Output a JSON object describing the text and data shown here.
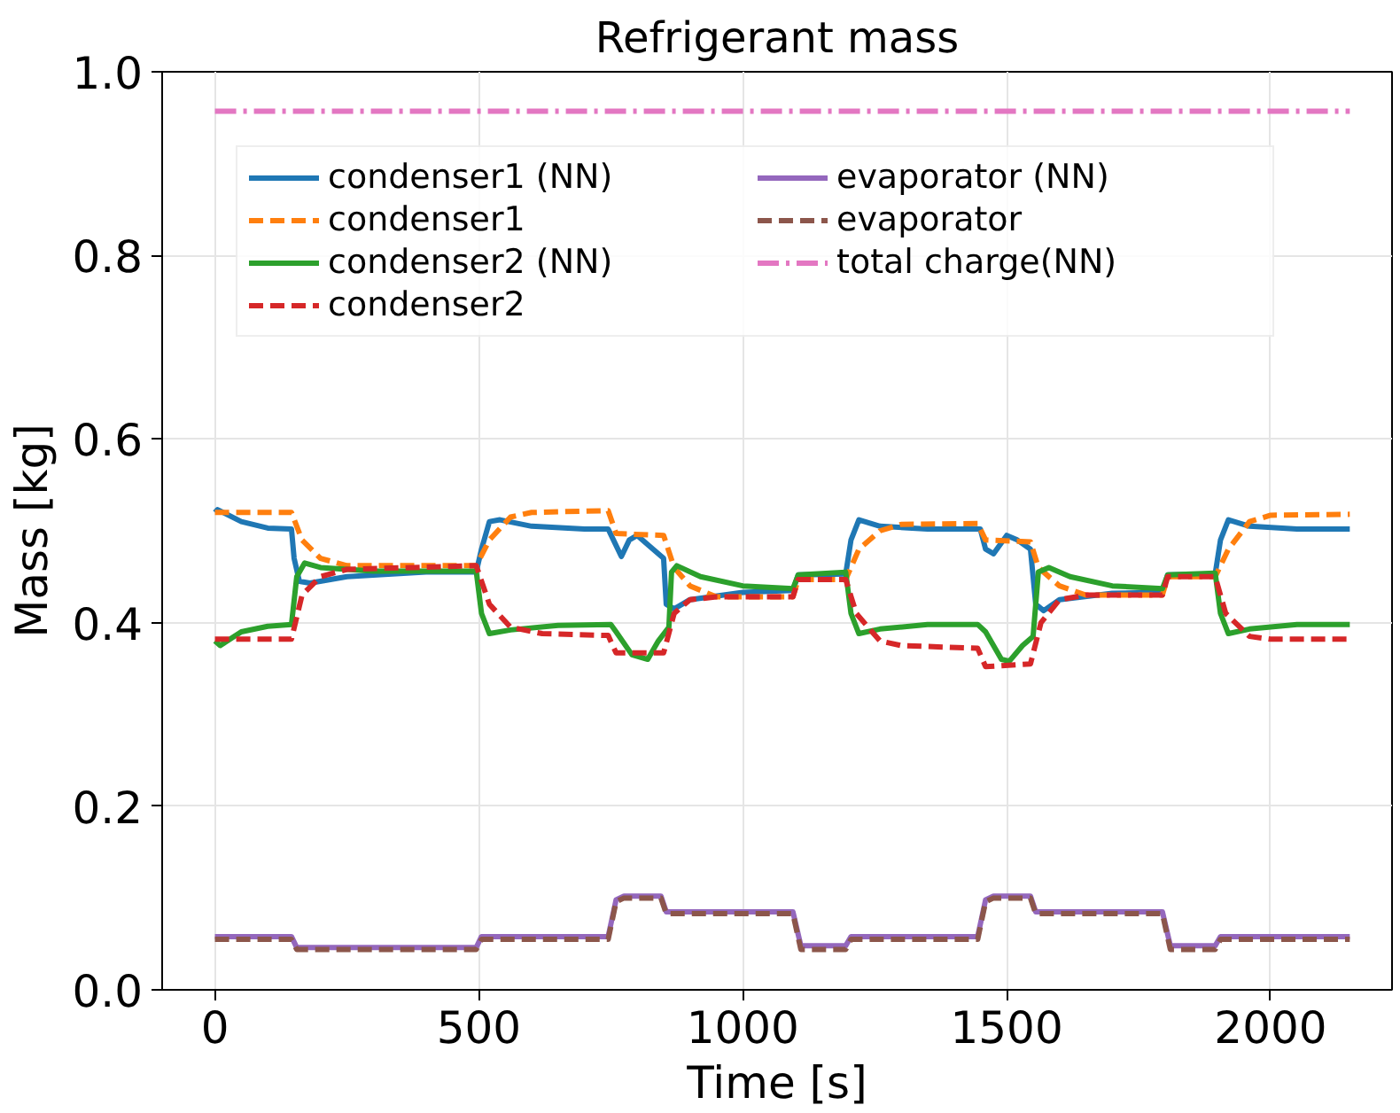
{
  "chart_data": {
    "type": "line",
    "title": "Refrigerant mass",
    "xlabel": "Time [s]",
    "ylabel": "Mass [kg]",
    "xlim": [
      -100,
      2230
    ],
    "ylim": [
      0,
      1.0
    ],
    "xticks": [
      0,
      500,
      1000,
      1500,
      2000
    ],
    "yticks": [
      {
        "value": 0,
        "label": "0.0"
      },
      {
        "value": 0.2,
        "label": "0.2"
      },
      {
        "value": 0.4,
        "label": "0.4"
      },
      {
        "value": 0.6,
        "label": "0.6"
      },
      {
        "value": 0.8,
        "label": "0.8"
      },
      {
        "value": 1,
        "label": "1.0"
      }
    ],
    "grid": true,
    "legend": "top left",
    "series": [
      {
        "name": "condenser1 (NN)",
        "color": "#1f77b4",
        "line_style": "solid",
        "x": [
          0,
          5,
          50,
          100,
          145,
          150,
          160,
          180,
          250,
          400,
          495,
          505,
          520,
          540,
          600,
          700,
          745,
          755,
          770,
          785,
          800,
          830,
          850,
          855,
          870,
          900,
          1000,
          1095,
          1105,
          1195,
          1205,
          1220,
          1260,
          1350,
          1450,
          1460,
          1475,
          1500,
          1520,
          1545,
          1555,
          1570,
          1600,
          1700,
          1795,
          1805,
          1895,
          1905,
          1920,
          1960,
          2050,
          2150
        ],
        "values": [
          0.52,
          0.523,
          0.51,
          0.503,
          0.502,
          0.47,
          0.445,
          0.443,
          0.45,
          0.455,
          0.455,
          0.48,
          0.51,
          0.512,
          0.505,
          0.502,
          0.502,
          0.49,
          0.472,
          0.49,
          0.495,
          0.48,
          0.47,
          0.42,
          0.415,
          0.425,
          0.433,
          0.435,
          0.452,
          0.453,
          0.49,
          0.512,
          0.505,
          0.502,
          0.502,
          0.48,
          0.475,
          0.495,
          0.49,
          0.48,
          0.42,
          0.413,
          0.425,
          0.432,
          0.433,
          0.452,
          0.453,
          0.49,
          0.512,
          0.505,
          0.502,
          0.502
        ]
      },
      {
        "name": "condenser1",
        "color": "#ff7f0e",
        "line_style": "dashed",
        "x": [
          0,
          145,
          165,
          200,
          250,
          495,
          520,
          560,
          600,
          745,
          760,
          850,
          870,
          900,
          950,
          1095,
          1105,
          1195,
          1220,
          1260,
          1300,
          1445,
          1460,
          1545,
          1560,
          1600,
          1650,
          1795,
          1805,
          1895,
          1920,
          1960,
          2000,
          2150
        ],
        "values": [
          0.52,
          0.52,
          0.49,
          0.47,
          0.462,
          0.462,
          0.49,
          0.515,
          0.52,
          0.522,
          0.497,
          0.495,
          0.46,
          0.44,
          0.428,
          0.428,
          0.447,
          0.447,
          0.48,
          0.5,
          0.507,
          0.508,
          0.49,
          0.488,
          0.46,
          0.44,
          0.43,
          0.43,
          0.45,
          0.45,
          0.48,
          0.51,
          0.517,
          0.518
        ]
      },
      {
        "name": "condenser2 (NN)",
        "color": "#2ca02c",
        "line_style": "solid",
        "x": [
          0,
          10,
          50,
          100,
          145,
          155,
          170,
          200,
          300,
          495,
          505,
          520,
          560,
          650,
          750,
          760,
          790,
          820,
          840,
          860,
          865,
          875,
          920,
          1000,
          1095,
          1105,
          1195,
          1205,
          1220,
          1260,
          1350,
          1445,
          1460,
          1490,
          1505,
          1530,
          1550,
          1560,
          1580,
          1620,
          1700,
          1795,
          1805,
          1895,
          1905,
          1920,
          1960,
          2050,
          2150
        ],
        "values": [
          0.38,
          0.375,
          0.39,
          0.396,
          0.398,
          0.45,
          0.465,
          0.46,
          0.456,
          0.456,
          0.41,
          0.388,
          0.392,
          0.397,
          0.398,
          0.39,
          0.365,
          0.36,
          0.38,
          0.395,
          0.455,
          0.462,
          0.45,
          0.44,
          0.437,
          0.452,
          0.455,
          0.41,
          0.388,
          0.393,
          0.398,
          0.398,
          0.39,
          0.36,
          0.358,
          0.375,
          0.385,
          0.455,
          0.46,
          0.45,
          0.44,
          0.437,
          0.452,
          0.454,
          0.41,
          0.388,
          0.393,
          0.398,
          0.398
        ]
      },
      {
        "name": "condenser2",
        "color": "#d62728",
        "line_style": "dashed",
        "x": [
          0,
          145,
          165,
          200,
          250,
          495,
          520,
          560,
          620,
          745,
          760,
          850,
          870,
          900,
          950,
          1095,
          1105,
          1195,
          1215,
          1260,
          1300,
          1445,
          1460,
          1545,
          1565,
          1600,
          1650,
          1795,
          1805,
          1895,
          1915,
          1960,
          2000,
          2150
        ],
        "values": [
          0.382,
          0.382,
          0.43,
          0.45,
          0.458,
          0.462,
          0.42,
          0.395,
          0.388,
          0.386,
          0.367,
          0.367,
          0.41,
          0.425,
          0.428,
          0.428,
          0.447,
          0.447,
          0.41,
          0.38,
          0.375,
          0.372,
          0.352,
          0.355,
          0.4,
          0.425,
          0.43,
          0.43,
          0.45,
          0.45,
          0.41,
          0.385,
          0.382,
          0.382
        ]
      },
      {
        "name": "evaporator (NN)",
        "color": "#9467bd",
        "line_style": "solid",
        "x": [
          0,
          145,
          155,
          495,
          505,
          745,
          760,
          775,
          845,
          855,
          1095,
          1110,
          1195,
          1205,
          1445,
          1460,
          1475,
          1545,
          1555,
          1795,
          1810,
          1895,
          1905,
          2150
        ],
        "values": [
          0.058,
          0.058,
          0.046,
          0.046,
          0.058,
          0.058,
          0.098,
          0.102,
          0.102,
          0.085,
          0.085,
          0.048,
          0.048,
          0.058,
          0.058,
          0.098,
          0.102,
          0.102,
          0.085,
          0.085,
          0.048,
          0.048,
          0.058,
          0.058
        ]
      },
      {
        "name": "evaporator",
        "color": "#8c564b",
        "line_style": "dashed",
        "x": [
          0,
          145,
          155,
          495,
          505,
          745,
          760,
          775,
          845,
          855,
          1095,
          1110,
          1195,
          1205,
          1445,
          1460,
          1475,
          1545,
          1555,
          1795,
          1810,
          1895,
          1905,
          2150
        ],
        "values": [
          0.055,
          0.055,
          0.044,
          0.044,
          0.055,
          0.055,
          0.096,
          0.1,
          0.1,
          0.083,
          0.083,
          0.044,
          0.044,
          0.055,
          0.055,
          0.096,
          0.1,
          0.1,
          0.083,
          0.083,
          0.044,
          0.044,
          0.055,
          0.055
        ]
      },
      {
        "name": "total charge(NN)",
        "color": "#e377c2",
        "line_style": "dashdot",
        "x": [
          0,
          2150
        ],
        "values": [
          0.957,
          0.957
        ]
      }
    ]
  }
}
